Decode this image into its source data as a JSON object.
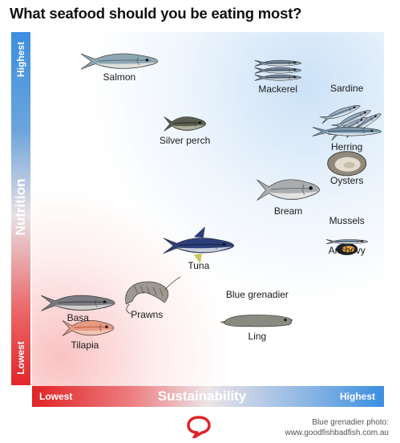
{
  "title": "What seafood should you be eating most?",
  "chart_data": {
    "type": "scatter",
    "title": "What seafood should you be eating most?",
    "xlabel": "Sustainability",
    "ylabel": "Nutrition",
    "x_end_labels": {
      "low": "Lowest",
      "high": "Highest"
    },
    "y_end_labels": {
      "low": "Lowest",
      "high": "Highest"
    },
    "xlim": [
      0,
      10
    ],
    "ylim": [
      0,
      10
    ],
    "grid": false,
    "points": [
      {
        "label": "Salmon",
        "x": 2.3,
        "y": 9.3,
        "icon": "salmon-fish"
      },
      {
        "label": "Mackerel",
        "x": 6.9,
        "y": 8.9,
        "icon": "mackerel-fish"
      },
      {
        "label": "Sardine",
        "x": 8.9,
        "y": 8.5,
        "icon": "sardine-fish"
      },
      {
        "label": "Silver perch",
        "x": 4.2,
        "y": 7.2,
        "icon": "perch-fish"
      },
      {
        "label": "Herring",
        "x": 8.9,
        "y": 7.0,
        "icon": "herring-fish"
      },
      {
        "label": "Oysters",
        "x": 8.9,
        "y": 5.9,
        "icon": "oyster-shell"
      },
      {
        "label": "Bream",
        "x": 7.2,
        "y": 4.9,
        "icon": "bream-fish"
      },
      {
        "label": "Mussels",
        "x": 8.9,
        "y": 4.2,
        "icon": "mussel-shell"
      },
      {
        "label": "Anchovy",
        "x": 8.9,
        "y": 3.6,
        "icon": "anchovy-fish"
      },
      {
        "label": "Tuna",
        "x": 4.6,
        "y": 3.1,
        "icon": "tuna-fish"
      },
      {
        "label": "Blue grenadier",
        "x": 6.3,
        "y": 1.8,
        "icon": "grenadier-fish"
      },
      {
        "label": "Prawns",
        "x": 3.1,
        "y": 1.5,
        "icon": "prawn"
      },
      {
        "label": "Basa",
        "x": 1.1,
        "y": 1.4,
        "icon": "basa-fish"
      },
      {
        "label": "Ling",
        "x": 6.3,
        "y": 0.8,
        "icon": "ling-fish"
      },
      {
        "label": "Tilapia",
        "x": 1.3,
        "y": 0.5,
        "icon": "tilapia-fish"
      }
    ]
  },
  "credit": {
    "line1": "Blue grenadier photo:",
    "line2": "www.goodfishbadfish.com.au"
  },
  "colors": {
    "high": "#3b8ee0",
    "low": "#e02326",
    "logo": "#e02326"
  }
}
